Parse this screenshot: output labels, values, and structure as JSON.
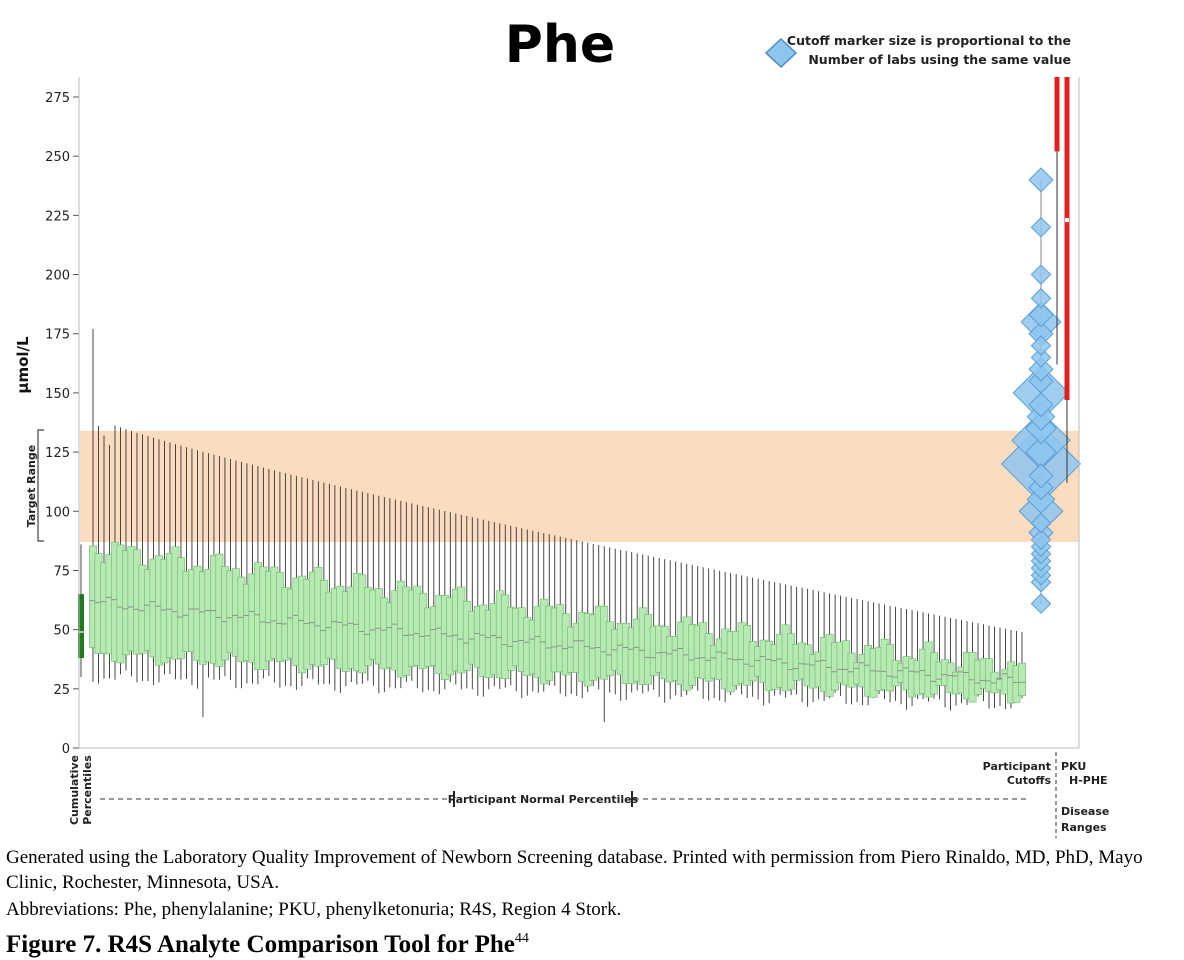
{
  "chart_data": {
    "type": "box",
    "title": "Phe",
    "ylabel": "µmol/L",
    "ylim": [
      0,
      275
    ],
    "yticks": [
      0,
      25,
      50,
      75,
      100,
      125,
      150,
      175,
      200,
      225,
      250,
      275
    ],
    "target_range": {
      "label": "Target Range",
      "low": 87,
      "high": 134
    },
    "legend": {
      "line1": "Cutoff marker size is proportional to the",
      "line2": "Number of labs using the same value"
    },
    "cumulative_percentiles": {
      "label_line1": "Cumulative",
      "label_line2": "Percentiles",
      "whisker_low": 30,
      "whisker_high": 86,
      "q1": 38,
      "q3": 65,
      "median": 49
    },
    "participants": {
      "label": "Participant Normal Percentiles",
      "count": 170,
      "whisker_high_first": 177,
      "whisker_high_start": 140,
      "whisker_high_end": 49,
      "q3_start": 85,
      "q3_end": 34,
      "median_start": 62,
      "median_end": 28,
      "q1_start": 40,
      "q1_end": 22,
      "whisker_low_start": 30,
      "whisker_low_end": 18
    },
    "cutoffs": {
      "label_line1": "Participant",
      "label_line2": "Cutoffs",
      "markers": [
        {
          "value": 61,
          "labs": 1
        },
        {
          "value": 70,
          "labs": 1
        },
        {
          "value": 73,
          "labs": 1
        },
        {
          "value": 76,
          "labs": 1
        },
        {
          "value": 79,
          "labs": 1
        },
        {
          "value": 82,
          "labs": 1
        },
        {
          "value": 85,
          "labs": 1
        },
        {
          "value": 88,
          "labs": 1
        },
        {
          "value": 91,
          "labs": 2
        },
        {
          "value": 95,
          "labs": 1
        },
        {
          "value": 100,
          "labs": 10
        },
        {
          "value": 105,
          "labs": 3
        },
        {
          "value": 110,
          "labs": 2
        },
        {
          "value": 115,
          "labs": 2
        },
        {
          "value": 120,
          "labs": 40
        },
        {
          "value": 125,
          "labs": 4
        },
        {
          "value": 130,
          "labs": 20
        },
        {
          "value": 135,
          "labs": 4
        },
        {
          "value": 140,
          "labs": 3
        },
        {
          "value": 145,
          "labs": 2
        },
        {
          "value": 150,
          "labs": 18
        },
        {
          "value": 155,
          "labs": 2
        },
        {
          "value": 160,
          "labs": 2
        },
        {
          "value": 165,
          "labs": 1
        },
        {
          "value": 170,
          "labs": 1
        },
        {
          "value": 175,
          "labs": 2
        },
        {
          "value": 180,
          "labs": 8
        },
        {
          "value": 183,
          "labs": 2
        },
        {
          "value": 190,
          "labs": 1
        },
        {
          "value": 200,
          "labs": 1
        },
        {
          "value": 220,
          "labs": 1
        },
        {
          "value": 240,
          "labs": 2
        }
      ]
    },
    "disease_ranges": {
      "label": "Disease Ranges",
      "label_line1": "Disease",
      "label_line2": "Ranges",
      "items": [
        {
          "name": "PKU",
          "whisker_low": 162,
          "box_low": 252,
          "box_high": 275,
          "color": "#e02020"
        },
        {
          "name": "H-PHE",
          "whisker_low": 112,
          "box_low": 147,
          "box_high": 275,
          "median": 223,
          "color": "#e02020"
        }
      ]
    }
  },
  "caption": {
    "generated": "Generated using the Laboratory Quality Improvement of Newborn Screening database. Printed with permission from Piero Rinaldo, MD, PhD, Mayo Clinic, Rochester, Minnesota, USA.",
    "abbreviations": "Abbreviations: Phe, phenylalanine; PKU, phenylketonuria; R4S, Region 4 Stork.",
    "figure_label": "Figure 7. R4S Analyte Comparison Tool for Phe",
    "figure_ref": "44"
  }
}
